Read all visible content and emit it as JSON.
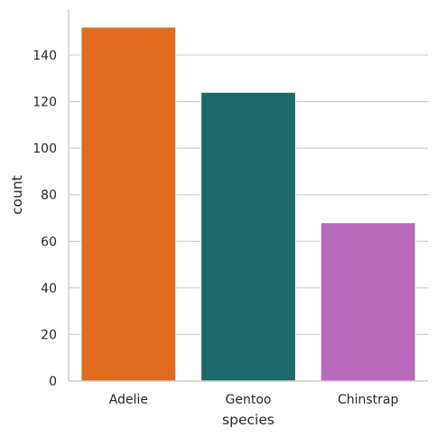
{
  "chart_data": {
    "type": "bar",
    "categories": [
      "Adelie",
      "Gentoo",
      "Chinstrap"
    ],
    "values": [
      152,
      124,
      68
    ],
    "colors": [
      "#e06c1f",
      "#1c6a6c",
      "#b96abd"
    ],
    "xlabel": "species",
    "ylabel": "count",
    "ylim": [
      0,
      160
    ],
    "yticks": [
      0,
      20,
      40,
      60,
      80,
      100,
      120,
      140
    ],
    "grid": "horizontal",
    "legend": "none"
  }
}
